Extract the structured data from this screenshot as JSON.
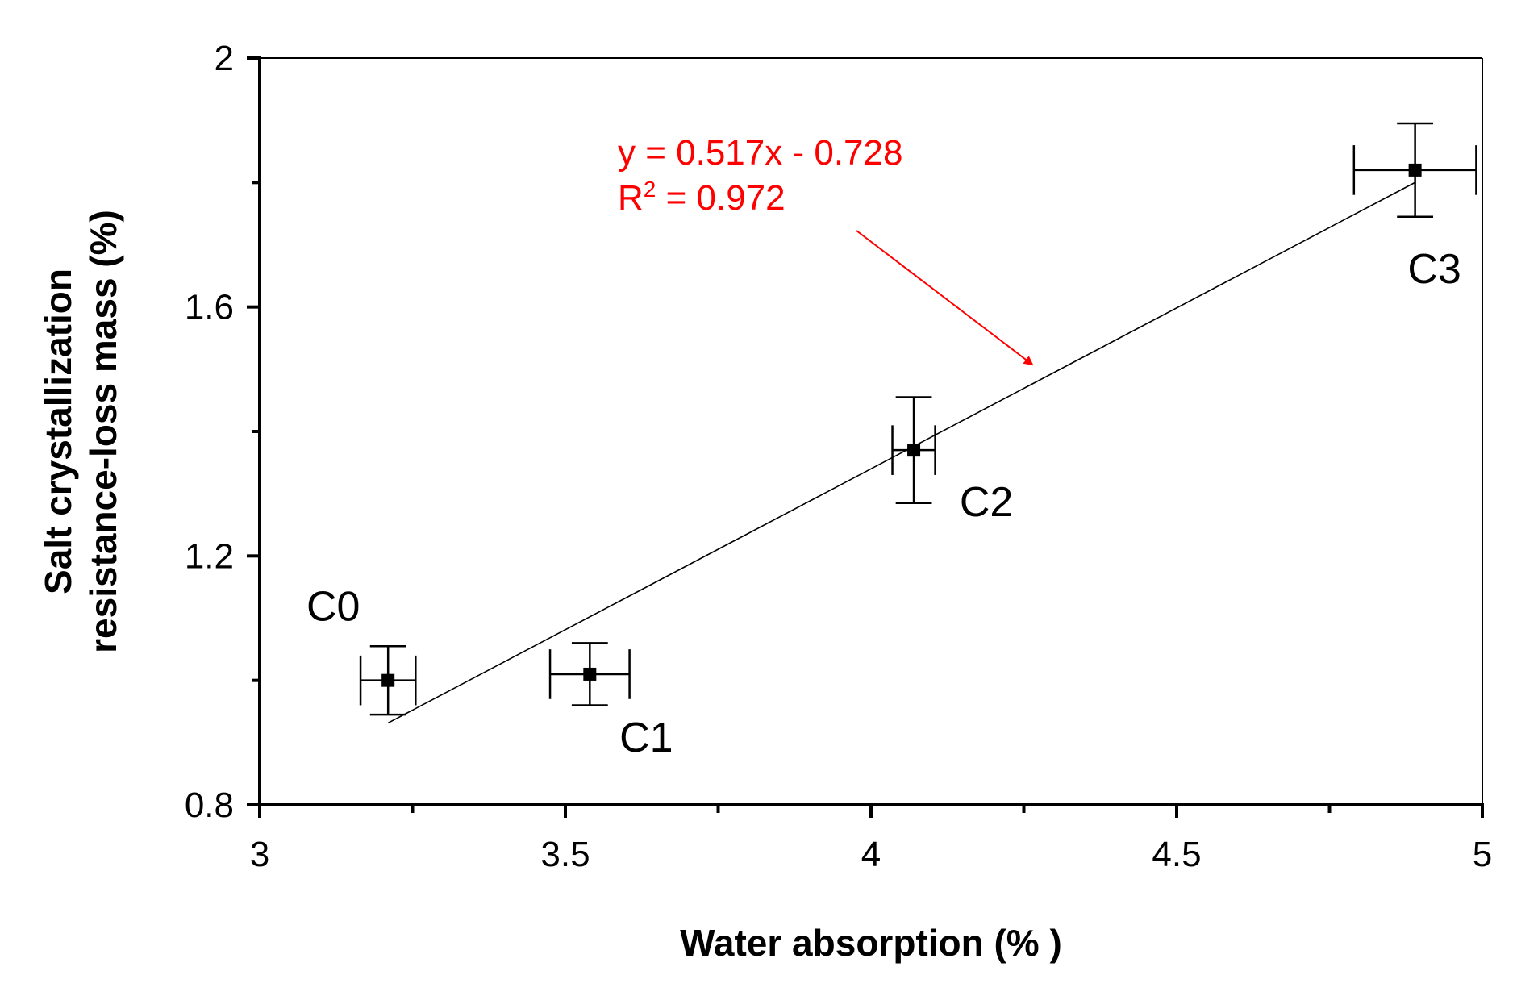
{
  "chart_data": {
    "type": "scatter",
    "xlabel": "Water absorption (% )",
    "ylabel_lines": [
      "Salt crystallization",
      "resistance-loss mass (%)"
    ],
    "xlim": [
      3,
      5
    ],
    "ylim": [
      0.8,
      2.0
    ],
    "x_ticks": [
      {
        "value": 3,
        "label": "3"
      },
      {
        "value": 3.5,
        "label": "3.5"
      },
      {
        "value": 4,
        "label": "4"
      },
      {
        "value": 4.5,
        "label": "4.5"
      },
      {
        "value": 5,
        "label": "5"
      }
    ],
    "x_minor_ticks": [
      3.25,
      3.75,
      4.25,
      4.75
    ],
    "y_ticks": [
      {
        "value": 0.8,
        "label": "0.8"
      },
      {
        "value": 1.2,
        "label": "1.2"
      },
      {
        "value": 1.6,
        "label": "1.6"
      },
      {
        "value": 2.0,
        "label": "2"
      }
    ],
    "y_minor_ticks": [
      1.0,
      1.4,
      1.8
    ],
    "grid": false,
    "points": [
      {
        "label": "C0",
        "x": 3.21,
        "y": 1.0,
        "x_err": 0.045,
        "y_err": 0.055
      },
      {
        "label": "C1",
        "x": 3.54,
        "y": 1.01,
        "x_err": 0.065,
        "y_err": 0.05
      },
      {
        "label": "C2",
        "x": 4.07,
        "y": 1.37,
        "x_err": 0.035,
        "y_err": 0.085
      },
      {
        "label": "C3",
        "x": 4.89,
        "y": 1.82,
        "x_err": 0.1,
        "y_err": 0.075
      }
    ],
    "fit": {
      "slope": 0.517,
      "intercept": -0.728,
      "x_range": [
        3.21,
        4.89
      ],
      "equation_text": "y = 0.517x - 0.728",
      "r2_prefix": "R",
      "r2_sup": "2",
      "r2_value": " = 0.972",
      "color": "#ff0000"
    }
  }
}
